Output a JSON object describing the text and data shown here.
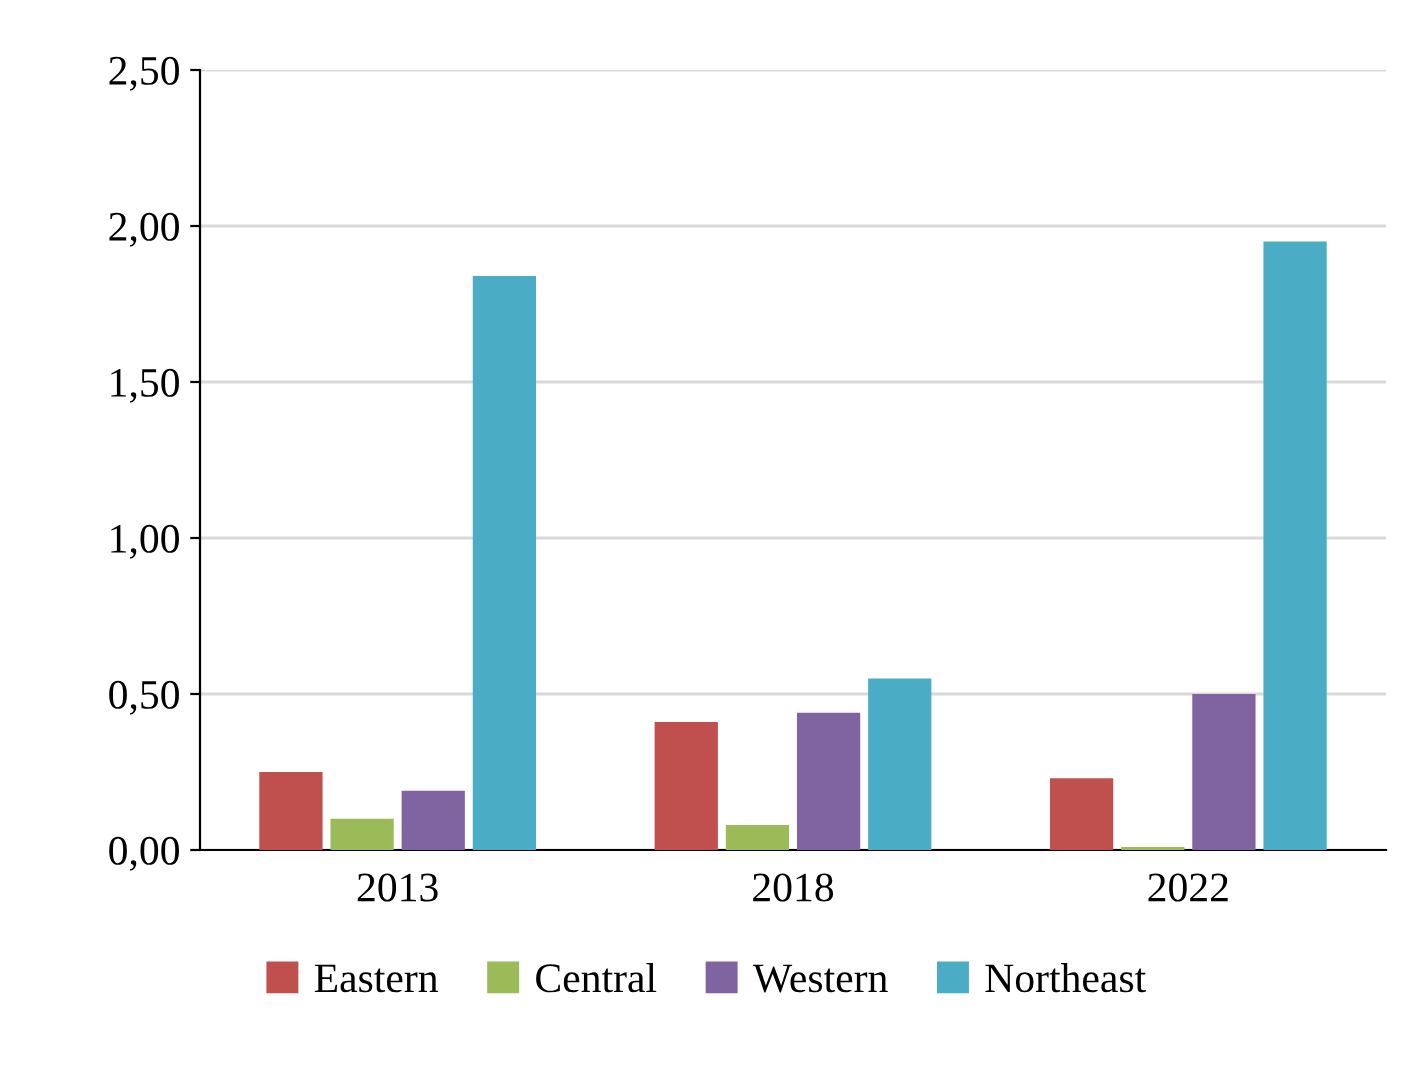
{
  "chart_data": {
    "type": "bar",
    "categories": [
      "2013",
      "2018",
      "2022"
    ],
    "series": [
      {
        "name": "Eastern",
        "color": "#c0504d",
        "values": [
          0.25,
          0.41,
          0.23
        ]
      },
      {
        "name": "Central",
        "color": "#9bbb59",
        "values": [
          0.1,
          0.08,
          0.01
        ]
      },
      {
        "name": "Western",
        "color": "#8064a2",
        "values": [
          0.19,
          0.44,
          0.5
        ]
      },
      {
        "name": "Northeast",
        "color": "#4bacc6",
        "values": [
          1.84,
          0.55,
          1.95
        ]
      }
    ],
    "ylim": [
      0,
      2.5
    ],
    "yticks": [
      {
        "value": 0,
        "label": "0,00"
      },
      {
        "value": 0.5,
        "label": "0,50"
      },
      {
        "value": 1,
        "label": "1,00"
      },
      {
        "value": 1.5,
        "label": "1,50"
      },
      {
        "value": 2,
        "label": "2,00"
      },
      {
        "value": 2.5,
        "label": "2,50"
      }
    ],
    "grid": "y",
    "legend": "bottom"
  }
}
